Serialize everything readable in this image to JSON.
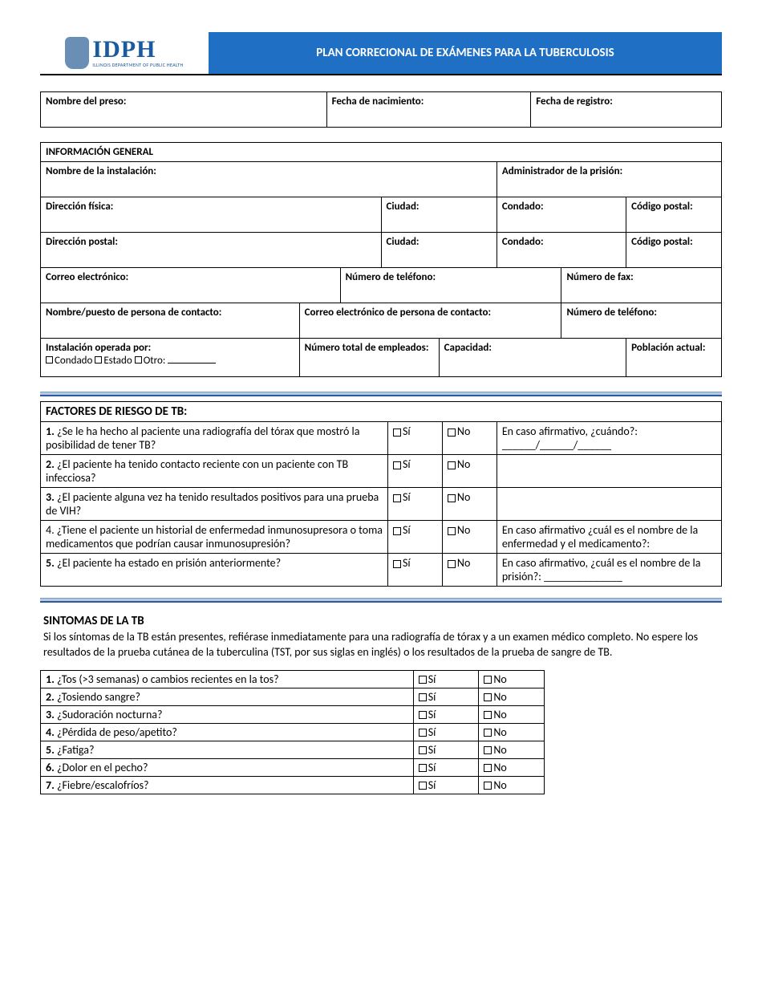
{
  "header": {
    "logo_main": "IDPH",
    "logo_sub": "ILLINOIS DEPARTMENT OF PUBLIC HEALTH",
    "title": "PLAN CORRECIONAL DE EXÁMENES PARA LA TUBERCULOSIS"
  },
  "id_row": {
    "name": "Nombre del preso:",
    "dob": "Fecha de nacimiento:",
    "reg": "Fecha de registro:"
  },
  "general": {
    "heading": "INFORMACIÓN GENERAL",
    "facility": "Nombre de la instalación:",
    "admin": "Administrador de la prisión:",
    "addr_phys": "Dirección física:",
    "addr_mail": "Dirección postal:",
    "city": "Ciudad:",
    "county": "Condado:",
    "zip": "Código postal:",
    "email": "Correo electrónico:",
    "phone": "Número de teléfono:",
    "fax": "Número de fax:",
    "contact_name": "Nombre/puesto de persona de contacto:",
    "contact_email": "Correo electrónico de persona de contacto:",
    "contact_phone": "Número de teléfono:",
    "operated_by": "Instalación operada por:",
    "op_county": "Condado",
    "op_state": "Estado",
    "op_other": "Otro:",
    "employees": "Número total de empleados:",
    "capacity": "Capacidad:",
    "population": "Población actual:"
  },
  "risk": {
    "heading": "FACTORES DE RIESGO DE TB:",
    "yes": "Sí",
    "no": "No",
    "q1": "1. ¿Se le ha hecho al paciente una radiografía del tórax que mostró la posibilidad de tener TB?",
    "q1f": "En caso afirmativo, ¿cuándo?:",
    "q1f_date": "______/______/______",
    "q2": "2. ¿El paciente ha tenido contacto reciente con un paciente con TB infecciosa?",
    "q3": "3. ¿El paciente alguna vez ha tenido resultados positivos para una prueba de VIH?",
    "q4": "4. ¿Tiene el paciente un historial de enfermedad inmunosupresora o toma medicamentos que podrían causar inmunosupresión?",
    "q4f": "En caso afirmativo ¿cuál es el nombre de la enfermedad y el medicamento?:",
    "q5": "5. ¿El paciente ha estado en prisión anteriormente?",
    "q5f": "En caso afirmativo, ¿cuál es el nombre de la prisión?: ______________"
  },
  "symptoms": {
    "heading": "SINTOMAS DE LA TB",
    "intro": "Si los síntomas de la TB están presentes, refiérase inmediatamente para una radiografía de tórax y a un examen médico completo. No espere los resultados de la prueba cutánea de la tuberculina (TST, por sus siglas en inglés) o los resultados de la prueba de sangre de TB.",
    "yes": "Sí",
    "no": "No",
    "items": [
      "1. ¿Tos (>3 semanas) o cambios recientes en la tos?",
      "2. ¿Tosiendo sangre?",
      "3. ¿Sudoración nocturna?",
      "4. ¿Pérdida de peso/apetito?",
      "5. ¿Fatiga?",
      "6. ¿Dolor en el pecho?",
      "7. ¿Fiebre/escalofríos?"
    ]
  }
}
